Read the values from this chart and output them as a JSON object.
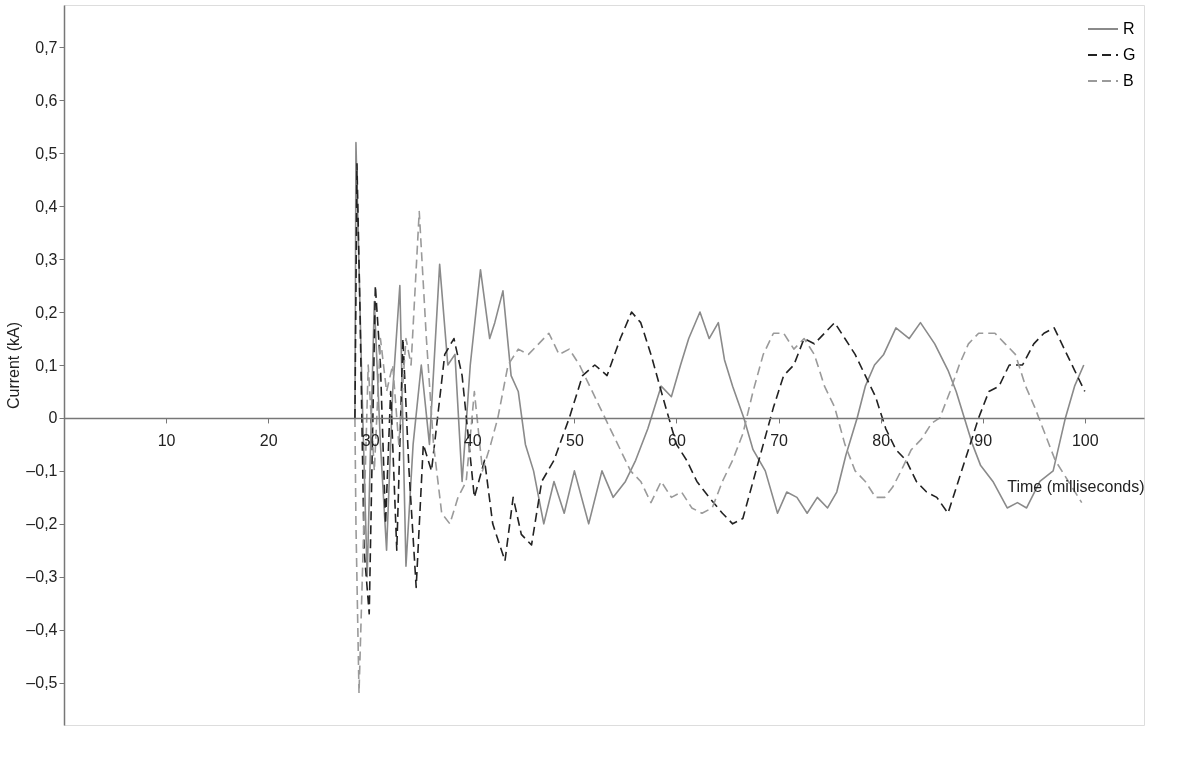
{
  "chart_data": {
    "type": "line",
    "xlabel": "Time  (milliseconds)",
    "ylabel": "Current  (kA)",
    "xlim": [
      0,
      105.8
    ],
    "ylim": [
      -0.58,
      0.78
    ],
    "xticks": [
      10,
      20,
      30,
      40,
      50,
      60,
      70,
      80,
      90,
      100
    ],
    "yticks": [
      {
        "value": -0.5,
        "label": "–0,5"
      },
      {
        "value": -0.4,
        "label": "–0,4"
      },
      {
        "value": -0.3,
        "label": "–0,3"
      },
      {
        "value": -0.2,
        "label": "–0,2"
      },
      {
        "value": -0.1,
        "label": "–0,1"
      },
      0,
      {
        "value": 0.1,
        "label": "0,1"
      },
      {
        "value": 0.2,
        "label": "0,2"
      },
      {
        "value": 0.3,
        "label": "0,3"
      },
      {
        "value": 0.4,
        "label": "0,4"
      },
      {
        "value": 0.5,
        "label": "0,5"
      },
      {
        "value": 0.6,
        "label": "0,6"
      },
      {
        "value": 0.7,
        "label": "0,7"
      }
    ],
    "grid": false,
    "legend": "top right",
    "marker": "none",
    "series": [
      {
        "name": "R",
        "color": "#8a8a8a",
        "line_style": "solid",
        "x": [
          28.5,
          28.6,
          29.2,
          29.7,
          30.4,
          31.0,
          31.6,
          32.2,
          32.9,
          33.5,
          34.2,
          35.0,
          35.8,
          36.8,
          37.6,
          38.3,
          39.0,
          39.8,
          40.8,
          41.7,
          42.2,
          43.0,
          43.8,
          44.5,
          45.2,
          46.0,
          47.0,
          48.0,
          49.0,
          50.0,
          51.4,
          52.7,
          53.8,
          55.0,
          56.0,
          57.2,
          58.5,
          59.5,
          60.4,
          61.2,
          62.3,
          63.2,
          64.1,
          64.7,
          65.5,
          66.6,
          67.5,
          68.7,
          69.9,
          70.8,
          71.8,
          72.8,
          73.8,
          74.8,
          75.7,
          76.6,
          77.7,
          78.5,
          79.4,
          80.3,
          81.5,
          82.8,
          83.9,
          85.3,
          86.6,
          87.4,
          88.2,
          89.0,
          89.8,
          91.0,
          92.4,
          93.4,
          94.3,
          95.6,
          96.9,
          98.1,
          99.0,
          99.9
        ],
        "values": [
          0,
          0.52,
          0.05,
          -0.3,
          0.22,
          -0.05,
          -0.25,
          0.05,
          0.25,
          -0.28,
          -0.05,
          0.1,
          -0.05,
          0.29,
          0.1,
          0.12,
          -0.12,
          0.1,
          0.28,
          0.15,
          0.18,
          0.24,
          0.08,
          0.05,
          -0.05,
          -0.1,
          -0.2,
          -0.12,
          -0.18,
          -0.1,
          -0.2,
          -0.1,
          -0.15,
          -0.12,
          -0.08,
          -0.02,
          0.06,
          0.04,
          0.1,
          0.15,
          0.2,
          0.15,
          0.18,
          0.11,
          0.06,
          0.0,
          -0.06,
          -0.1,
          -0.18,
          -0.14,
          -0.15,
          -0.18,
          -0.15,
          -0.17,
          -0.14,
          -0.07,
          0.0,
          0.06,
          0.1,
          0.12,
          0.17,
          0.15,
          0.18,
          0.14,
          0.09,
          0.05,
          0.0,
          -0.05,
          -0.09,
          -0.12,
          -0.17,
          -0.16,
          -0.17,
          -0.12,
          -0.1,
          0.0,
          0.06,
          0.1
        ]
      },
      {
        "name": "G",
        "color": "#222222",
        "line_style": "dashed",
        "x": [
          28.5,
          28.7,
          29.0,
          29.4,
          29.9,
          30.5,
          31.0,
          31.5,
          32.0,
          32.6,
          33.2,
          33.8,
          34.5,
          35.2,
          36.0,
          37.3,
          38.2,
          39.0,
          40.2,
          41.2,
          42.0,
          43.2,
          44.0,
          44.8,
          45.8,
          46.8,
          48.0,
          49.5,
          50.8,
          52.0,
          53.2,
          54.5,
          55.6,
          56.5,
          57.5,
          58.8,
          60.0,
          61.0,
          62.0,
          63.2,
          64.5,
          65.5,
          66.5,
          67.5,
          68.5,
          69.5,
          70.5,
          71.5,
          72.5,
          73.5,
          74.5,
          75.5,
          76.5,
          77.5,
          78.5,
          79.5,
          80.5,
          81.5,
          82.5,
          83.5,
          84.5,
          85.5,
          86.6,
          87.6,
          88.6,
          89.6,
          90.6,
          91.6,
          92.6,
          93.9,
          95.0,
          96.0,
          97.0,
          98.0,
          99.0,
          100.0
        ],
        "values": [
          0,
          0.48,
          0.2,
          -0.25,
          -0.37,
          0.25,
          0.1,
          -0.2,
          0.05,
          -0.25,
          0.15,
          -0.1,
          -0.32,
          -0.05,
          -0.1,
          0.12,
          0.15,
          0.08,
          -0.15,
          -0.08,
          -0.2,
          -0.27,
          -0.15,
          -0.22,
          -0.24,
          -0.12,
          -0.08,
          0.0,
          0.08,
          0.1,
          0.08,
          0.15,
          0.2,
          0.18,
          0.12,
          0.03,
          -0.05,
          -0.08,
          -0.12,
          -0.15,
          -0.18,
          -0.2,
          -0.19,
          -0.12,
          -0.05,
          0.02,
          0.08,
          0.1,
          0.15,
          0.14,
          0.16,
          0.18,
          0.15,
          0.12,
          0.08,
          0.04,
          -0.02,
          -0.06,
          -0.08,
          -0.12,
          -0.14,
          -0.15,
          -0.18,
          -0.12,
          -0.06,
          0.0,
          0.05,
          0.06,
          0.1,
          0.1,
          0.14,
          0.16,
          0.17,
          0.13,
          0.09,
          0.05
        ]
      },
      {
        "name": "B",
        "color": "#9a9a9a",
        "line_style": "dashed",
        "x": [
          28.5,
          28.6,
          28.9,
          29.3,
          29.8,
          30.4,
          31.0,
          31.6,
          32.2,
          32.8,
          33.5,
          34.0,
          34.8,
          35.5,
          36.2,
          37.0,
          37.8,
          38.6,
          39.4,
          40.2,
          41.0,
          41.8,
          42.5,
          43.5,
          44.5,
          45.5,
          46.5,
          47.5,
          48.5,
          49.5,
          50.5,
          51.5,
          52.5,
          53.5,
          54.5,
          55.5,
          56.5,
          57.5,
          58.5,
          59.5,
          60.5,
          61.5,
          62.5,
          63.5,
          64.5,
          65.5,
          66.5,
          67.5,
          68.5,
          69.5,
          70.5,
          71.5,
          72.5,
          73.5,
          74.5,
          75.5,
          76.5,
          77.5,
          78.5,
          79.5,
          80.4,
          81.2,
          82.0,
          83.0,
          84.0,
          85.0,
          85.8,
          86.8,
          87.7,
          88.6,
          89.6,
          90.4,
          91.2,
          92.2,
          93.2,
          94.2,
          95.1,
          96.1,
          97.1,
          98.4,
          99.7
        ],
        "values": [
          0,
          -0.2,
          -0.52,
          -0.25,
          0.1,
          -0.1,
          0.15,
          0.05,
          0.1,
          -0.05,
          0.15,
          0.1,
          0.39,
          0.15,
          -0.05,
          -0.18,
          -0.2,
          -0.15,
          -0.12,
          0.05,
          -0.1,
          -0.05,
          0.0,
          0.1,
          0.13,
          0.12,
          0.14,
          0.16,
          0.12,
          0.13,
          0.1,
          0.06,
          0.02,
          -0.02,
          -0.06,
          -0.1,
          -0.12,
          -0.16,
          -0.12,
          -0.15,
          -0.14,
          -0.17,
          -0.18,
          -0.17,
          -0.12,
          -0.08,
          -0.03,
          0.05,
          0.12,
          0.16,
          0.16,
          0.13,
          0.15,
          0.12,
          0.06,
          0.02,
          -0.05,
          -0.1,
          -0.12,
          -0.15,
          -0.15,
          -0.13,
          -0.1,
          -0.06,
          -0.04,
          -0.01,
          0.0,
          0.05,
          0.1,
          0.14,
          0.16,
          0.16,
          0.16,
          0.14,
          0.12,
          0.06,
          0.02,
          -0.03,
          -0.08,
          -0.12,
          -0.16
        ]
      }
    ]
  }
}
